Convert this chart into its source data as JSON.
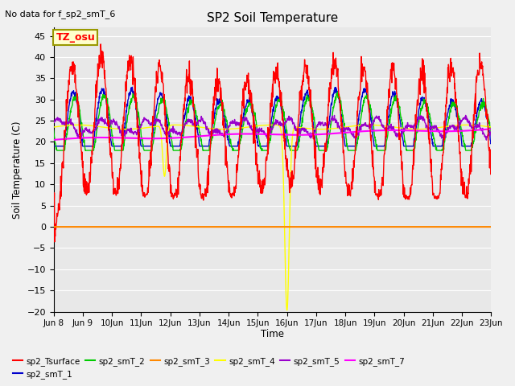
{
  "title": "SP2 Soil Temperature",
  "ylabel": "Soil Temperature (C)",
  "xlabel": "Time",
  "no_data_text": "No data for f_sp2_smT_6",
  "tz_label": "TZ_osu",
  "ylim": [
    -20,
    47
  ],
  "yticks": [
    -20,
    -15,
    -10,
    -5,
    0,
    5,
    10,
    15,
    20,
    25,
    30,
    35,
    40,
    45
  ],
  "series_colors": {
    "sp2_Tsurface": "#ff0000",
    "sp2_smT_1": "#0000cc",
    "sp2_smT_2": "#00cc00",
    "sp2_smT_3": "#ff8800",
    "sp2_smT_4": "#ffff00",
    "sp2_smT_5": "#9900cc",
    "sp2_smT_7": "#ff00ff"
  },
  "background_color": "#e8e8e8",
  "grid_color": "#ffffff",
  "legend_box_facecolor": "#ffffcc",
  "legend_box_edgecolor": "#999900",
  "fig_facecolor": "#f0f0f0"
}
